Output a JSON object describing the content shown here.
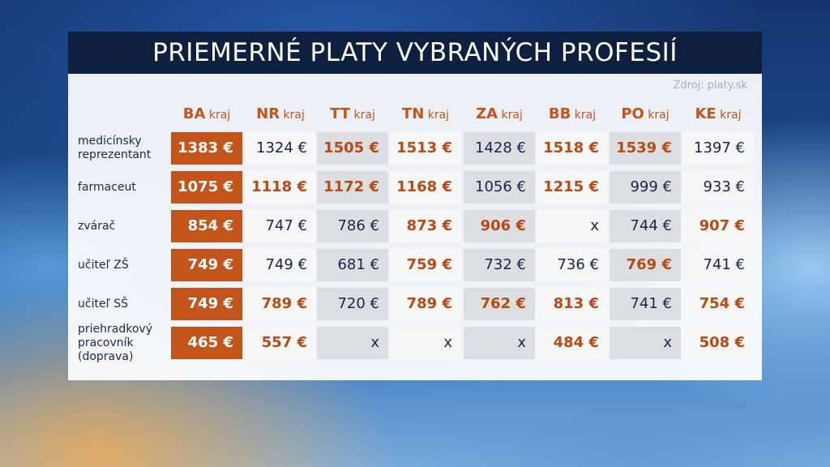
{
  "title": "PRIEMERNÉ PLATY VYBRANÝCH PROFESIÍ",
  "source": "Zdroj: platy.sk",
  "columns": [
    {
      "code": "BA",
      "suffix": "kraj"
    },
    {
      "code": "NR",
      "suffix": "kraj"
    },
    {
      "code": "TT",
      "suffix": "kraj"
    },
    {
      "code": "TN",
      "suffix": "kraj"
    },
    {
      "code": "ZA",
      "suffix": "kraj"
    },
    {
      "code": "BB",
      "suffix": "kraj"
    },
    {
      "code": "PO",
      "suffix": "kraj"
    },
    {
      "code": "KE",
      "suffix": "kraj"
    }
  ],
  "rows": [
    {
      "label": "medicínsky reprezentant",
      "values": [
        "1383 €",
        "1324 €",
        "1505 €",
        "1513 €",
        "1428 €",
        "1518 €",
        "1539 €",
        "1397 €"
      ],
      "highlight": [
        true,
        false,
        true,
        true,
        false,
        true,
        true,
        false
      ]
    },
    {
      "label": "farmaceut",
      "values": [
        "1075 €",
        "1118 €",
        "1172 €",
        "1168 €",
        "1056 €",
        "1215 €",
        "999 €",
        "933 €"
      ],
      "highlight": [
        true,
        true,
        true,
        true,
        false,
        true,
        false,
        false
      ]
    },
    {
      "label": "zvárač",
      "values": [
        "854 €",
        "747 €",
        "786 €",
        "873 €",
        "906 €",
        "x",
        "744 €",
        "907 €"
      ],
      "highlight": [
        true,
        false,
        false,
        true,
        true,
        false,
        false,
        true
      ]
    },
    {
      "label": "učiteľ ZŠ",
      "values": [
        "749 €",
        "749 €",
        "681 €",
        "759 €",
        "732 €",
        "736 €",
        "769 €",
        "741 €"
      ],
      "highlight": [
        true,
        false,
        false,
        true,
        false,
        false,
        true,
        false
      ]
    },
    {
      "label": "učiteľ SŠ",
      "values": [
        "749 €",
        "789 €",
        "720 €",
        "789 €",
        "762 €",
        "813 €",
        "741 €",
        "754 €"
      ],
      "highlight": [
        true,
        true,
        false,
        true,
        true,
        true,
        false,
        true
      ]
    },
    {
      "label": "priehradkový pracovník (doprava)",
      "values": [
        "465 €",
        "557 €",
        "x",
        "x",
        "x",
        "484 €",
        "x",
        "508 €"
      ],
      "highlight": [
        true,
        true,
        false,
        false,
        false,
        true,
        false,
        true
      ]
    }
  ],
  "colors": {
    "accent": "#c4551a",
    "title_bg": "#0e1f3f",
    "value_text": "#16264a",
    "grey_cell": "#dcdee2"
  }
}
